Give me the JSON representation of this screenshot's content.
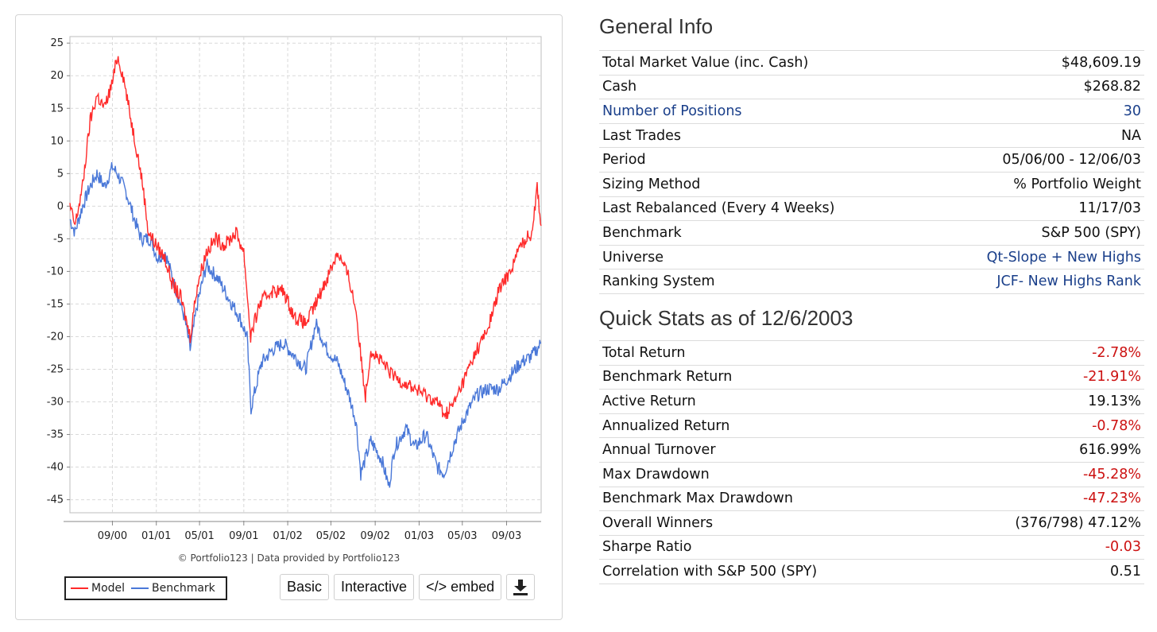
{
  "chart_data": {
    "type": "line",
    "ylim": [
      -47,
      26
    ],
    "y_ticks": [
      25,
      20,
      15,
      10,
      5,
      0,
      -5,
      -10,
      -15,
      -20,
      -25,
      -30,
      -35,
      -40,
      -45
    ],
    "x_tick_labels": [
      "09/00",
      "01/01",
      "05/01",
      "09/01",
      "01/02",
      "05/02",
      "09/02",
      "01/03",
      "05/03",
      "09/03"
    ],
    "x_range": [
      "2000-05-06",
      "2003-12-06"
    ],
    "grid": true,
    "legend_position": "bottom-left",
    "series": [
      {
        "name": "Model",
        "color": "#ff2a2a",
        "points": [
          [
            "2000-05-06",
            0
          ],
          [
            "2000-05-20",
            -3
          ],
          [
            "2000-06-10",
            3
          ],
          [
            "2000-07-01",
            13
          ],
          [
            "2000-07-20",
            17
          ],
          [
            "2000-08-10",
            15
          ],
          [
            "2000-09-01",
            19
          ],
          [
            "2000-09-15",
            23
          ],
          [
            "2000-10-01",
            20
          ],
          [
            "2000-10-20",
            14
          ],
          [
            "2000-11-10",
            8
          ],
          [
            "2000-11-25",
            3
          ],
          [
            "2000-12-10",
            -4
          ],
          [
            "2001-01-01",
            -6
          ],
          [
            "2001-01-25",
            -8
          ],
          [
            "2001-02-15",
            -12
          ],
          [
            "2001-03-10",
            -14
          ],
          [
            "2001-04-05",
            -20
          ],
          [
            "2001-04-25",
            -12
          ],
          [
            "2001-05-20",
            -7
          ],
          [
            "2001-06-15",
            -5
          ],
          [
            "2001-07-10",
            -6
          ],
          [
            "2001-08-10",
            -4
          ],
          [
            "2001-09-01",
            -7
          ],
          [
            "2001-09-20",
            -20
          ],
          [
            "2001-10-15",
            -15
          ],
          [
            "2001-11-15",
            -13
          ],
          [
            "2001-12-20",
            -13
          ],
          [
            "2002-01-20",
            -17
          ],
          [
            "2002-02-20",
            -18
          ],
          [
            "2002-03-20",
            -15
          ],
          [
            "2002-04-20",
            -11
          ],
          [
            "2002-05-20",
            -7
          ],
          [
            "2002-06-20",
            -11
          ],
          [
            "2002-07-10",
            -16
          ],
          [
            "2002-07-25",
            -24
          ],
          [
            "2002-08-05",
            -29
          ],
          [
            "2002-08-20",
            -22
          ],
          [
            "2002-09-20",
            -24
          ],
          [
            "2002-10-20",
            -26
          ],
          [
            "2002-11-20",
            -27
          ],
          [
            "2002-12-20",
            -28
          ],
          [
            "2003-01-20",
            -29
          ],
          [
            "2003-02-20",
            -30
          ],
          [
            "2003-03-15",
            -32
          ],
          [
            "2003-04-10",
            -30
          ],
          [
            "2003-05-10",
            -26
          ],
          [
            "2003-06-10",
            -22
          ],
          [
            "2003-07-10",
            -19
          ],
          [
            "2003-08-10",
            -13
          ],
          [
            "2003-09-10",
            -10
          ],
          [
            "2003-10-10",
            -6
          ],
          [
            "2003-11-10",
            -4
          ],
          [
            "2003-11-25",
            3
          ],
          [
            "2003-12-06",
            -3
          ]
        ]
      },
      {
        "name": "Benchmark",
        "color": "#4a78d8",
        "points": [
          [
            "2000-05-06",
            -2
          ],
          [
            "2000-05-20",
            -4
          ],
          [
            "2000-06-10",
            0
          ],
          [
            "2000-07-01",
            3
          ],
          [
            "2000-07-20",
            5
          ],
          [
            "2000-08-10",
            3
          ],
          [
            "2000-09-01",
            6
          ],
          [
            "2000-09-15",
            5
          ],
          [
            "2000-10-10",
            2
          ],
          [
            "2000-11-01",
            -2
          ],
          [
            "2000-11-20",
            -5
          ],
          [
            "2000-12-15",
            -5
          ],
          [
            "2001-01-05",
            -8
          ],
          [
            "2001-01-25",
            -7
          ],
          [
            "2001-02-20",
            -12
          ],
          [
            "2001-03-20",
            -17
          ],
          [
            "2001-04-05",
            -22
          ],
          [
            "2001-04-25",
            -15
          ],
          [
            "2001-05-20",
            -9
          ],
          [
            "2001-06-20",
            -11
          ],
          [
            "2001-07-20",
            -14
          ],
          [
            "2001-08-20",
            -17
          ],
          [
            "2001-09-10",
            -20
          ],
          [
            "2001-09-21",
            -31
          ],
          [
            "2001-10-20",
            -24
          ],
          [
            "2001-11-20",
            -22
          ],
          [
            "2001-12-20",
            -21
          ],
          [
            "2002-01-20",
            -23
          ],
          [
            "2002-02-20",
            -25
          ],
          [
            "2002-03-20",
            -18
          ],
          [
            "2002-04-20",
            -22
          ],
          [
            "2002-05-20",
            -24
          ],
          [
            "2002-06-20",
            -29
          ],
          [
            "2002-07-10",
            -33
          ],
          [
            "2002-07-23",
            -41
          ],
          [
            "2002-08-20",
            -36
          ],
          [
            "2002-09-20",
            -39
          ],
          [
            "2002-10-09",
            -43
          ],
          [
            "2002-10-25",
            -37
          ],
          [
            "2002-11-25",
            -34
          ],
          [
            "2002-12-20",
            -37
          ],
          [
            "2003-01-20",
            -35
          ],
          [
            "2003-02-20",
            -40
          ],
          [
            "2003-03-11",
            -41
          ],
          [
            "2003-04-10",
            -36
          ],
          [
            "2003-05-10",
            -32
          ],
          [
            "2003-06-10",
            -29
          ],
          [
            "2003-07-10",
            -28
          ],
          [
            "2003-08-10",
            -28
          ],
          [
            "2003-09-10",
            -26
          ],
          [
            "2003-10-10",
            -24
          ],
          [
            "2003-11-10",
            -23
          ],
          [
            "2003-12-06",
            -21
          ]
        ]
      }
    ]
  },
  "chart_footer": {
    "credit": "© Portfolio123 | Data provided by Portfolio123",
    "legend_model": "Model",
    "legend_benchmark": "Benchmark",
    "btn_basic": "Basic",
    "btn_interactive": "Interactive",
    "btn_embed": "</> embed",
    "download_icon": "download-icon"
  },
  "general_info": {
    "title": "General Info",
    "rows": [
      {
        "label": "Total Market Value (inc. Cash)",
        "value": "$48,609.19",
        "link": false
      },
      {
        "label": "Cash",
        "value": "$268.82",
        "link": false
      },
      {
        "label": "Number of Positions",
        "value": "30",
        "link": true
      },
      {
        "label": "Last Trades",
        "value": "NA",
        "link": false
      },
      {
        "label": "Period",
        "value": "05/06/00 - 12/06/03",
        "link": false
      },
      {
        "label": "Sizing Method",
        "value": "% Portfolio Weight",
        "link": false
      },
      {
        "label": "Last Rebalanced (Every 4 Weeks)",
        "value": "11/17/03",
        "link": false
      },
      {
        "label": "Benchmark",
        "value": "S&P 500 (SPY)",
        "link": false
      },
      {
        "label": "Universe",
        "value": "Qt-Slope + New Highs",
        "link": "value"
      },
      {
        "label": "Ranking System",
        "value": "JCF- New Highs Rank",
        "link": "value"
      }
    ]
  },
  "quick_stats": {
    "title": "Quick Stats as of 12/6/2003",
    "rows": [
      {
        "label": "Total Return",
        "value": "-2.78%",
        "negative": true
      },
      {
        "label": "Benchmark Return",
        "value": "-21.91%",
        "negative": true
      },
      {
        "label": "Active Return",
        "value": "19.13%",
        "negative": false
      },
      {
        "label": "Annualized Return",
        "value": "-0.78%",
        "negative": true
      },
      {
        "label": "Annual Turnover",
        "value": "616.99%",
        "negative": false
      },
      {
        "label": "Max Drawdown",
        "value": "-45.28%",
        "negative": true
      },
      {
        "label": "Benchmark Max Drawdown",
        "value": "-47.23%",
        "negative": true
      },
      {
        "label": "Overall Winners",
        "value": "(376/798) 47.12%",
        "negative": false
      },
      {
        "label": "Sharpe Ratio",
        "value": "-0.03",
        "negative": true
      },
      {
        "label": "Correlation with S&P 500 (SPY)",
        "value": "0.51",
        "negative": false
      }
    ]
  }
}
